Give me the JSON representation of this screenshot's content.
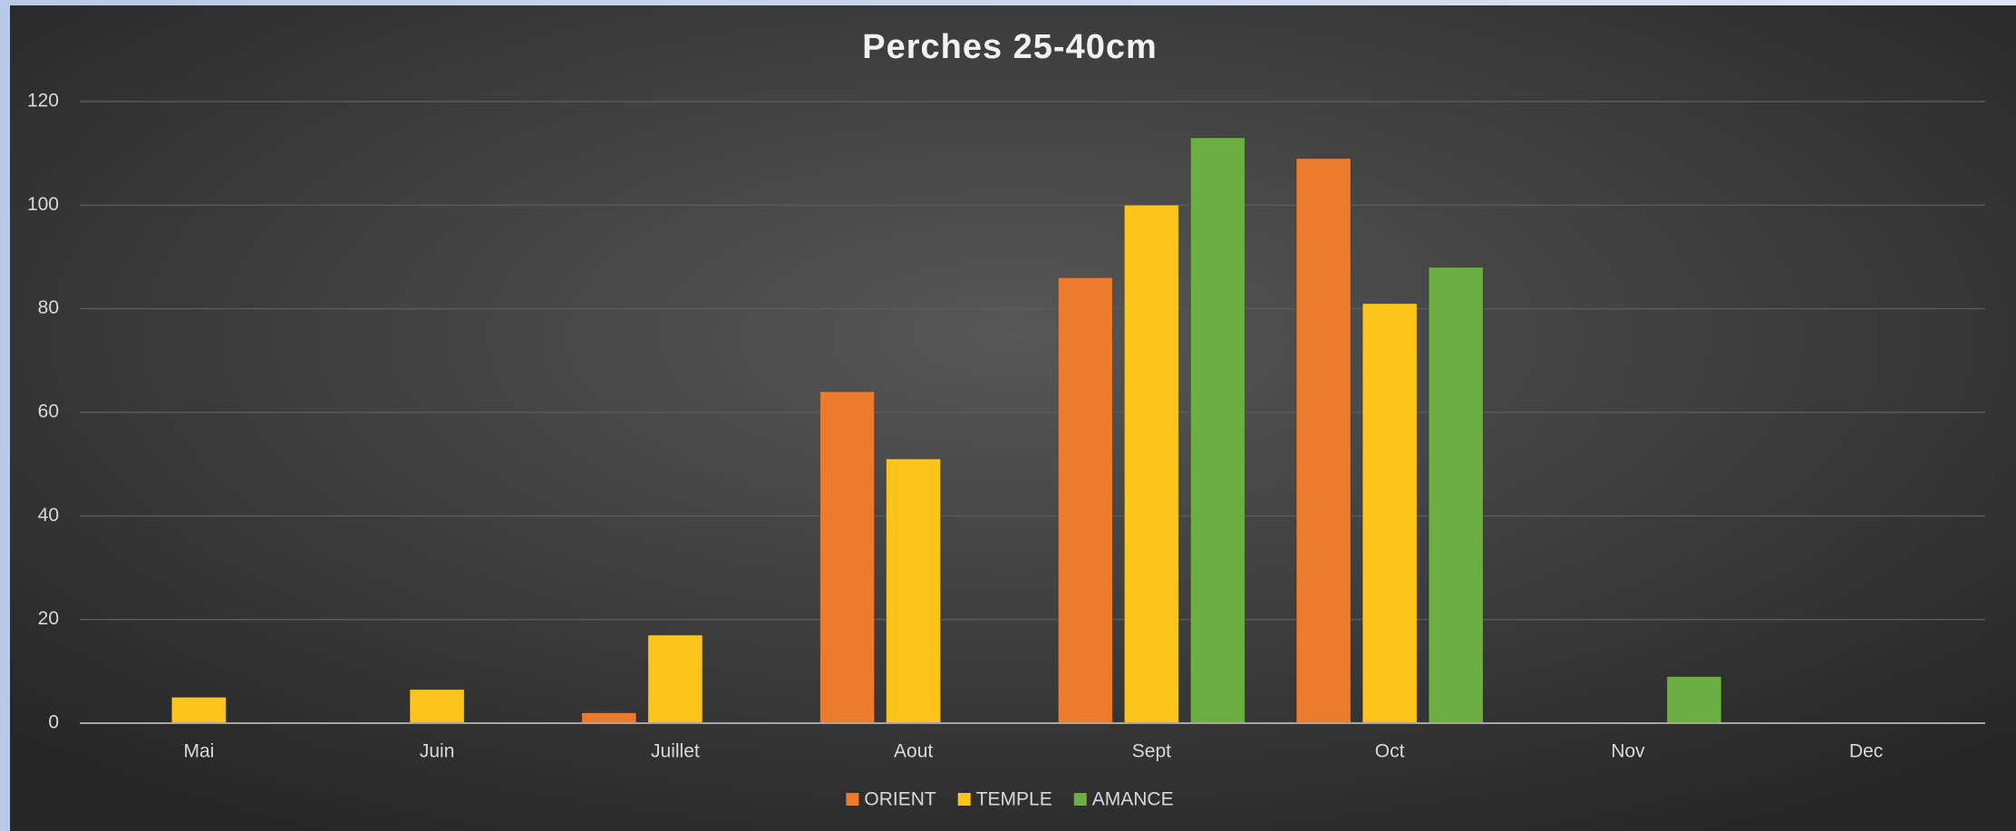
{
  "chart_data": {
    "type": "bar",
    "title": "Perches 25-40cm",
    "categories": [
      "Mai",
      "Juin",
      "Juillet",
      "Aout",
      "Sept",
      "Oct",
      "Nov",
      "Dec"
    ],
    "series": [
      {
        "name": "ORIENT",
        "color": "#ee7a2e",
        "values": [
          null,
          null,
          2,
          64,
          86,
          109,
          null,
          null
        ]
      },
      {
        "name": "TEMPLE",
        "color": "#fdc51a",
        "values": [
          5,
          6.5,
          17,
          51,
          100,
          81,
          null,
          null
        ]
      },
      {
        "name": "AMANCE",
        "color": "#6cae41",
        "values": [
          null,
          null,
          null,
          null,
          113,
          88,
          9,
          null
        ]
      }
    ],
    "ylim": [
      0,
      120
    ],
    "yticks": [
      0,
      20,
      40,
      60,
      80,
      100,
      120
    ],
    "grid": true,
    "legend": "bottom"
  }
}
